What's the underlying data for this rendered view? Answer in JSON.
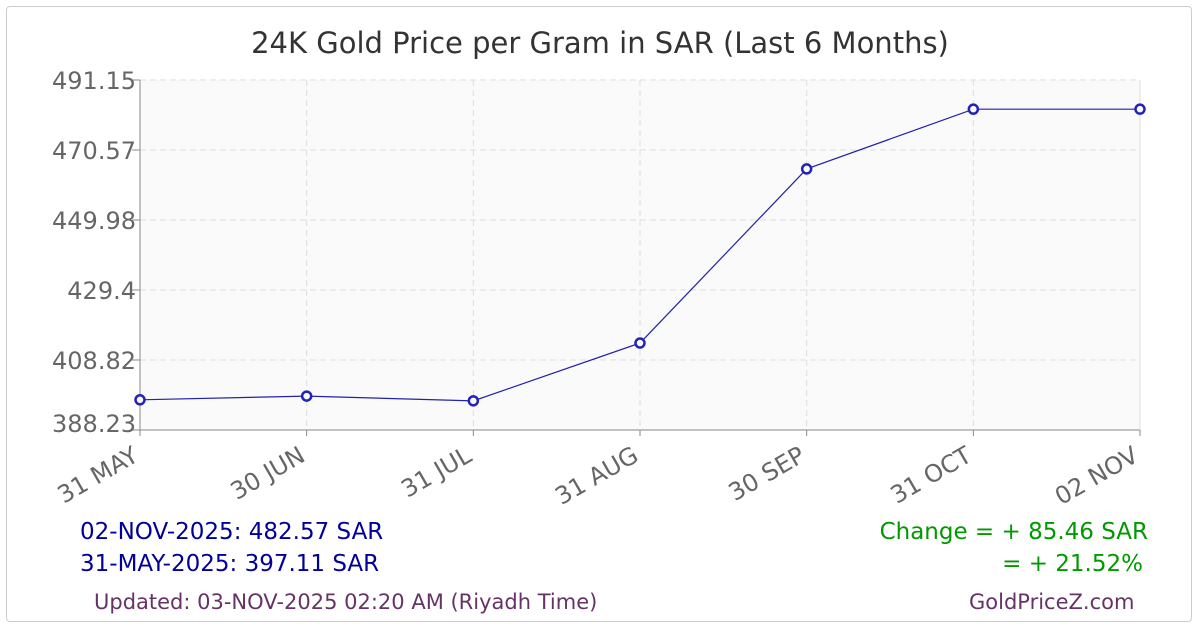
{
  "chart_data": {
    "type": "line",
    "title": "24K Gold Price per Gram in SAR (Last 6 Months)",
    "categories": [
      "31 MAY",
      "30 JUN",
      "31 JUL",
      "31 AUG",
      "30 SEP",
      "31 OCT",
      "02 NOV"
    ],
    "values": [
      397.11,
      398.2,
      396.8,
      413.8,
      465.0,
      482.57,
      482.57
    ],
    "yticks": [
      "388.23",
      "408.82",
      "429.4",
      "449.98",
      "470.57",
      "491.15"
    ],
    "ylim": [
      388.23,
      491.15
    ],
    "grid": true,
    "line_color": "#2222aa",
    "marker_color": "#2222bb"
  },
  "summary": {
    "latest": "02-NOV-2025: 482.57 SAR",
    "earliest": "31-MAY-2025: 397.11 SAR",
    "change_abs": "Change = + 85.46 SAR",
    "change_pct": "= + 21.52%",
    "updated": "Updated: 03-NOV-2025 02:20 AM (Riyadh Time)",
    "source": "GoldPriceZ.com"
  }
}
